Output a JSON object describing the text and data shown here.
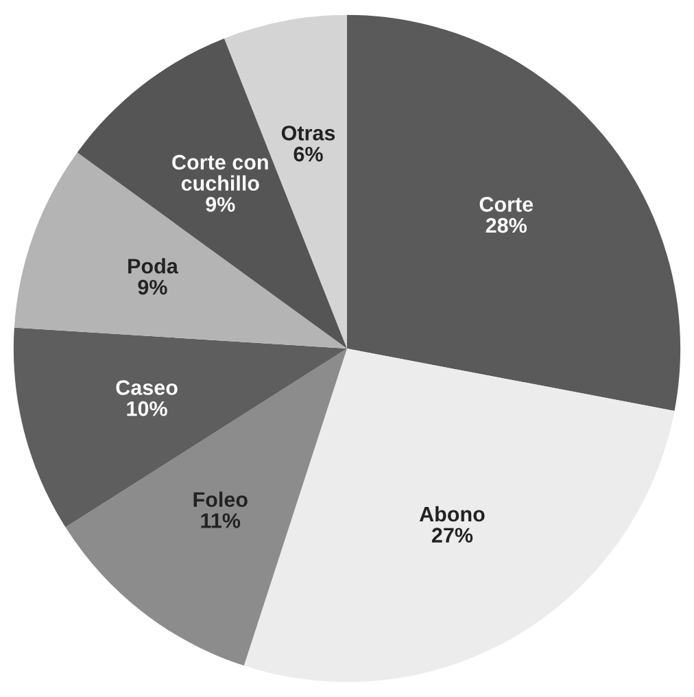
{
  "chart_data": {
    "type": "pie",
    "categories": [
      "Corte",
      "Abono",
      "Foleo",
      "Caseo",
      "Poda",
      "Corte con cuchillo",
      "Otras"
    ],
    "values": [
      28,
      27,
      11,
      10,
      9,
      9,
      6
    ],
    "colors": [
      "#5a5a5a",
      "#ececec",
      "#8c8c8c",
      "#5e5e5e",
      "#b4b4b4",
      "#555555",
      "#d4d4d4"
    ],
    "value_labels": [
      "28%",
      "27%",
      "11%",
      "10%",
      "9%",
      "9%",
      "6%"
    ]
  }
}
